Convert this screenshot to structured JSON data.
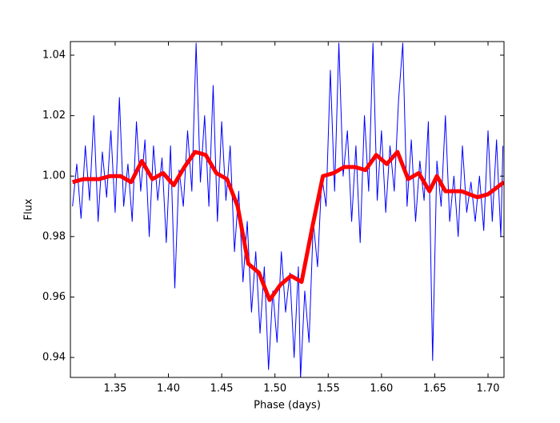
{
  "chart_data": {
    "type": "line",
    "xlabel": "Phase (days)",
    "ylabel": "Flux",
    "xlim": [
      1.308,
      1.715
    ],
    "ylim": [
      0.9334,
      1.0445
    ],
    "xticks": [
      1.35,
      {
        "value": 1.4,
        "label": "1.40"
      },
      1.45,
      {
        "value": 1.5,
        "label": "1.50"
      },
      1.55,
      {
        "value": 1.6,
        "label": "1.60"
      },
      1.65,
      {
        "value": 1.7,
        "label": "1.70"
      }
    ],
    "yticks": [
      0.94,
      0.96,
      0.98,
      {
        "value": 1.0,
        "label": "1.00"
      },
      1.02,
      1.04
    ],
    "series": [
      {
        "color": "#0000ff",
        "x": [
          1.31,
          1.314,
          1.318,
          1.322,
          1.326,
          1.33,
          1.334,
          1.338,
          1.342,
          1.346,
          1.35,
          1.354,
          1.358,
          1.362,
          1.366,
          1.37,
          1.374,
          1.378,
          1.382,
          1.386,
          1.39,
          1.394,
          1.398,
          1.402,
          1.406,
          1.41,
          1.414,
          1.418,
          1.422,
          1.426,
          1.43,
          1.434,
          1.438,
          1.442,
          1.446,
          1.45,
          1.454,
          1.458,
          1.462,
          1.466,
          1.47,
          1.474,
          1.478,
          1.482,
          1.486,
          1.49,
          1.494,
          1.498,
          1.502,
          1.506,
          1.51,
          1.514,
          1.518,
          1.522,
          1.524,
          1.528,
          1.532,
          1.536,
          1.54,
          1.544,
          1.548,
          1.552,
          1.556,
          1.56,
          1.564,
          1.568,
          1.572,
          1.576,
          1.58,
          1.584,
          1.588,
          1.592,
          1.596,
          1.6,
          1.604,
          1.608,
          1.612,
          1.616,
          1.62,
          1.624,
          1.628,
          1.632,
          1.636,
          1.64,
          1.644,
          1.648,
          1.652,
          1.656,
          1.66,
          1.664,
          1.668,
          1.672,
          1.676,
          1.68,
          1.684,
          1.688,
          1.692,
          1.696,
          1.7,
          1.704,
          1.708,
          1.712,
          1.714
        ],
        "values": [
          0.99,
          1.004,
          0.986,
          1.01,
          0.992,
          1.02,
          0.985,
          1.008,
          0.993,
          1.015,
          0.988,
          1.026,
          0.99,
          1.004,
          0.985,
          1.018,
          0.995,
          1.012,
          0.98,
          1.01,
          0.992,
          1.006,
          0.978,
          1.01,
          0.963,
          1.002,
          0.99,
          1.015,
          0.995,
          1.044,
          0.998,
          1.02,
          0.99,
          1.03,
          0.985,
          1.018,
          0.992,
          1.01,
          0.975,
          0.995,
          0.965,
          0.985,
          0.955,
          0.975,
          0.948,
          0.97,
          0.936,
          0.962,
          0.945,
          0.975,
          0.955,
          0.968,
          0.94,
          0.97,
          0.933,
          0.962,
          0.945,
          0.985,
          0.97,
          1.0,
          0.99,
          1.035,
          0.995,
          1.044,
          1.0,
          1.015,
          0.985,
          1.01,
          0.978,
          1.02,
          0.995,
          1.044,
          0.992,
          1.015,
          0.988,
          1.01,
          0.995,
          1.025,
          1.044,
          0.99,
          1.012,
          0.985,
          1.005,
          0.992,
          1.018,
          0.939,
          1.005,
          0.99,
          1.02,
          0.985,
          1.0,
          0.98,
          1.01,
          0.988,
          0.998,
          0.985,
          1.0,
          0.982,
          1.015,
          0.985,
          1.012,
          0.98,
          1.01
        ]
      },
      {
        "color": "#ff0000",
        "x": [
          1.31,
          1.32,
          1.335,
          1.345,
          1.355,
          1.365,
          1.375,
          1.385,
          1.395,
          1.405,
          1.415,
          1.425,
          1.435,
          1.445,
          1.455,
          1.465,
          1.475,
          1.485,
          1.495,
          1.505,
          1.515,
          1.525,
          1.535,
          1.545,
          1.555,
          1.565,
          1.575,
          1.585,
          1.595,
          1.605,
          1.615,
          1.625,
          1.635,
          1.645,
          1.652,
          1.66,
          1.675,
          1.69,
          1.7,
          1.715
        ],
        "values": [
          0.998,
          0.999,
          0.999,
          1.0,
          1.0,
          0.998,
          1.005,
          0.999,
          1.001,
          0.997,
          1.003,
          1.008,
          1.007,
          1.001,
          0.999,
          0.99,
          0.971,
          0.968,
          0.959,
          0.964,
          0.967,
          0.965,
          0.983,
          1.0,
          1.001,
          1.003,
          1.003,
          1.002,
          1.007,
          1.004,
          1.008,
          0.999,
          1.001,
          0.995,
          1.0,
          0.995,
          0.995,
          0.993,
          0.994,
          0.998
        ]
      }
    ]
  }
}
